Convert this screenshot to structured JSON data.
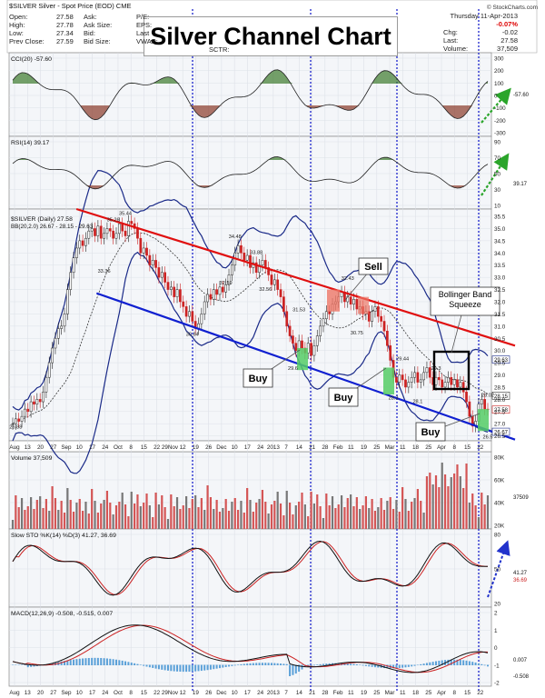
{
  "chart_data": {
    "type": "line",
    "title": "Silver Channel Chart",
    "symbol_line": "$SILVER Silver - Spot Price (EOD) CME",
    "watermark": "© StockCharts.com",
    "quote": {
      "open_label": "Open:",
      "open": "27.58",
      "high_label": "High:",
      "high": "27.78",
      "low_label": "Low:",
      "low": "27.34",
      "prev_label": "Prev Close:",
      "prev": "27.59",
      "ask_label": "Ask:",
      "asksize_label": "Ask Size:",
      "bid_label": "Bid:",
      "bidsize_label": "Bid Size:",
      "pe_label": "P/E:",
      "eps_label": "EPS:",
      "last_label": "Last",
      "vwap_label": "VWAP:",
      "sc_label": "SCTR:",
      "date": "Thursday 11-Apr-2013",
      "chg_pct": "-0.07%",
      "chg": "-0.02",
      "last": "27.58",
      "volume": "37,509",
      "chg_label": "Chg:",
      "last2_label": "Last:",
      "volume_label": "Volume:"
    },
    "x_labels": [
      "Aug",
      "13",
      "20",
      "27",
      "Sep",
      "10",
      "17",
      "24",
      "Oct",
      "8",
      "15",
      "22",
      "29Nov",
      "12",
      "19",
      "26",
      "Dec",
      "10",
      "17",
      "24",
      "2013",
      "7",
      "14",
      "21",
      "28",
      "Feb",
      "11",
      "19",
      "25",
      "Mar",
      "11",
      "18",
      "25",
      "Apr",
      "8",
      "15",
      "22"
    ],
    "price_panel": {
      "legend1": "$SILVER (Daily) 27.58",
      "legend2": "BB(20,2.0) 26.67 - 28.15 - 29.63",
      "yticks": [
        "35.5",
        "35.0",
        "34.5",
        "34.0",
        "33.5",
        "33.0",
        "32.5",
        "32.0",
        "31.5",
        "31.0",
        "30.5",
        "30.0",
        "29.5",
        "29.0",
        "28.5",
        "28.0",
        "27.5",
        "27.0",
        "26.5"
      ],
      "right_tags": [
        "29.63",
        "28.15",
        "27.58",
        "26.67"
      ],
      "ylim": [
        26.3,
        35.8
      ],
      "price_labels": [
        {
          "text": "35.26",
          "x": 55,
          "y": 35.3
        },
        {
          "text": "35.44",
          "x": 62,
          "y": 35.55
        },
        {
          "text": "33.36",
          "x": 50,
          "y": 33.2
        },
        {
          "text": "30.84",
          "x": 99,
          "y": 30.6
        },
        {
          "text": "34.48",
          "x": 122,
          "y": 34.6
        },
        {
          "text": "33.88",
          "x": 134,
          "y": 33.95
        },
        {
          "text": "32.59",
          "x": 116,
          "y": 32.7
        },
        {
          "text": "32.56",
          "x": 138,
          "y": 32.45
        },
        {
          "text": "31.53",
          "x": 157,
          "y": 31.6
        },
        {
          "text": "29.6",
          "x": 154,
          "y": 29.2
        },
        {
          "text": "32.43",
          "x": 183,
          "y": 32.9
        },
        {
          "text": "30.75",
          "x": 189,
          "y": 30.65
        },
        {
          "text": "29.44",
          "x": 214,
          "y": 29.6
        },
        {
          "text": "29.3",
          "x": 231,
          "y": 29.2
        },
        {
          "text": "28.02",
          "x": 262,
          "y": 28.1
        },
        {
          "text": "26.88",
          "x": 2,
          "y": 26.8
        },
        {
          "text": "26.5",
          "x": 260,
          "y": 26.4
        },
        {
          "text": "28.3",
          "x": 208,
          "y": 28.0
        },
        {
          "text": "28.1",
          "x": 222,
          "y": 27.85
        }
      ],
      "annotations": {
        "sell": "Sell",
        "buy1": "Buy",
        "buy2": "Buy",
        "buy3": "Buy",
        "squeeze": "Bollinger Band Squeeze"
      },
      "closes": [
        27.0,
        27.2,
        27.1,
        27.3,
        27.6,
        27.5,
        27.9,
        27.8,
        28.0,
        27.9,
        28.3,
        28.9,
        29.5,
        30.1,
        30.5,
        30.9,
        31.0,
        31.5,
        32.5,
        33.2,
        33.8,
        34.2,
        34.5,
        34.3,
        34.6,
        34.9,
        35.0,
        34.7,
        35.1,
        34.6,
        34.8,
        35.0,
        34.9,
        34.6,
        34.8,
        35.2,
        34.9,
        34.7,
        35.3,
        35.2,
        35.0,
        34.6,
        34.0,
        34.2,
        33.9,
        33.5,
        33.7,
        33.4,
        33.0,
        33.2,
        32.8,
        32.5,
        32.6,
        32.2,
        32.5,
        32.0,
        31.8,
        31.4,
        31.6,
        31.2,
        30.9,
        31.1,
        31.5,
        32.0,
        32.3,
        32.1,
        32.5,
        32.3,
        32.6,
        32.4,
        32.7,
        33.1,
        33.5,
        34.0,
        34.3,
        34.0,
        33.7,
        33.9,
        33.4,
        33.6,
        33.2,
        33.5,
        33.7,
        33.4,
        33.1,
        32.7,
        32.9,
        32.5,
        32.2,
        31.6,
        31.0,
        30.6,
        30.3,
        30.0,
        30.4,
        30.1,
        29.9,
        30.3,
        29.8,
        30.2,
        30.6,
        31.0,
        31.3,
        31.6,
        31.5,
        31.9,
        32.0,
        32.2,
        32.4,
        32.0,
        32.2,
        31.9,
        32.1,
        31.7,
        31.8,
        31.5,
        31.6,
        31.2,
        31.6,
        31.8,
        31.4,
        31.2,
        30.8,
        30.2,
        29.6,
        28.9,
        28.7,
        29.0,
        28.8,
        28.5,
        28.7,
        28.9,
        29.1,
        28.7,
        28.8,
        29.1,
        29.3,
        28.9,
        28.6,
        28.9,
        28.8,
        28.5,
        28.7,
        28.9,
        28.6,
        28.8,
        28.5,
        28.7,
        28.3,
        27.9,
        27.3,
        26.9,
        27.1,
        27.8,
        28.0,
        27.6,
        27.58
      ],
      "channel_upper": {
        "x": [
          38,
          285
        ],
        "y": [
          35.8,
          30.2
        ]
      },
      "channel_lower": {
        "x": [
          50,
          285
        ],
        "y": [
          32.35,
          26.35
        ]
      }
    },
    "cci": {
      "label": "CCI(20) -57.60",
      "yticks": [
        "300",
        "200",
        "100",
        "0",
        "-100",
        "-200",
        "-300"
      ],
      "tag": "-57.60"
    },
    "rsi": {
      "label": "RSI(14) 39.17",
      "yticks": [
        "90",
        "70",
        "50",
        "30",
        "10"
      ],
      "tag": "39.17"
    },
    "volume": {
      "label": "Volume 37,509",
      "yticks": [
        "80K",
        "60K",
        "40K",
        "20K"
      ],
      "tag": "37509"
    },
    "sto": {
      "label": "Slow STO %K(14) %D(3) 41.27, 36.69",
      "yticks": [
        "80",
        "50",
        "20"
      ],
      "tags": [
        "41.27",
        "36.69"
      ]
    },
    "macd": {
      "label": "MACD(12,26,9) -0.508, -0.515, 0.007",
      "yticks": [
        "2",
        "1",
        "0",
        "-1",
        "-2"
      ],
      "tags": [
        "0.007",
        "-0.508"
      ]
    }
  }
}
